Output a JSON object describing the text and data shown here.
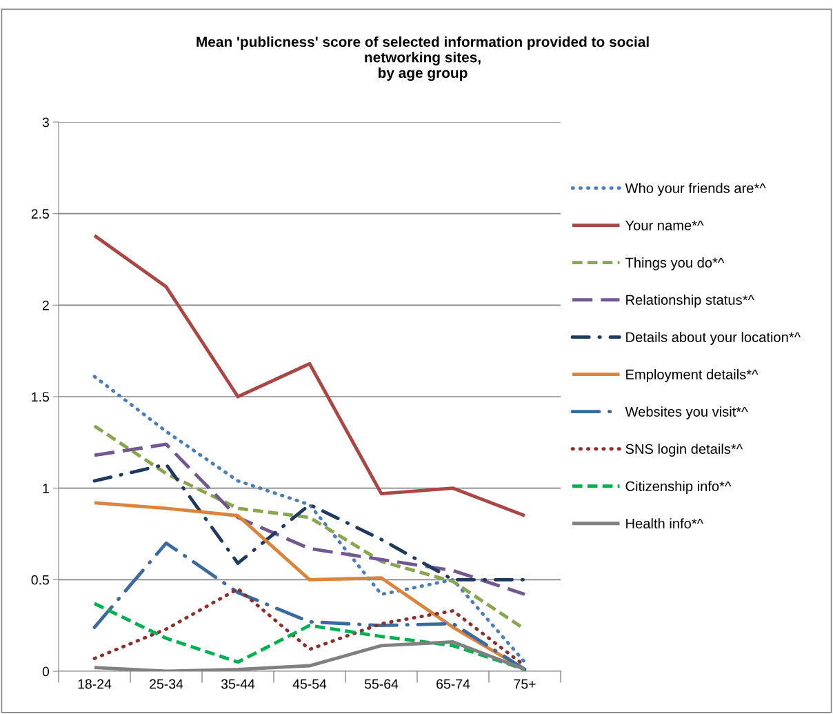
{
  "chart_data": {
    "type": "line",
    "title": "Mean 'publicness' score of selected information provided to social\nnetworking sites,\nby age group",
    "categories": [
      "18-24",
      "25-34",
      "35-44",
      "45-54",
      "55-64",
      "65-74",
      "75+"
    ],
    "series": [
      {
        "name": "Who your friends are*^",
        "color": "#4a7ebb",
        "line_style": "dotted",
        "values": [
          1.61,
          1.31,
          1.04,
          0.91,
          0.42,
          0.5,
          0.05
        ]
      },
      {
        "name": "Your name*^",
        "color": "#aa4643",
        "line_style": "solid",
        "values": [
          2.38,
          2.1,
          1.5,
          1.68,
          0.97,
          1.0,
          0.85
        ]
      },
      {
        "name": "Things you do*^",
        "color": "#89a54e",
        "line_style": "dashed",
        "values": [
          1.34,
          1.08,
          0.89,
          0.84,
          0.6,
          0.49,
          0.23
        ]
      },
      {
        "name": "Relationship status*^",
        "color": "#71588f",
        "line_style": "longdash",
        "values": [
          1.18,
          1.24,
          0.84,
          0.67,
          0.61,
          0.55,
          0.42
        ]
      },
      {
        "name": "Details about your location*^",
        "color": "#1f3a5f",
        "line_style": "dashdot",
        "values": [
          1.04,
          1.13,
          0.59,
          0.91,
          0.72,
          0.5,
          0.5
        ]
      },
      {
        "name": "Employment details*^",
        "color": "#db843d",
        "line_style": "solid",
        "values": [
          0.92,
          0.89,
          0.85,
          0.5,
          0.51,
          0.24,
          0.01
        ]
      },
      {
        "name": "Websites you visit*^",
        "color": "#3b6aa0",
        "line_style": "longdashdot",
        "values": [
          0.24,
          0.7,
          0.43,
          0.27,
          0.25,
          0.26,
          0.01
        ]
      },
      {
        "name": "SNS login details*^",
        "color": "#8b2f2f",
        "line_style": "dotted",
        "values": [
          0.07,
          0.23,
          0.45,
          0.12,
          0.26,
          0.33,
          0.03
        ]
      },
      {
        "name": "Citizenship info*^",
        "color": "#00b050",
        "line_style": "dashed",
        "values": [
          0.37,
          0.18,
          0.05,
          0.25,
          0.19,
          0.14,
          0.01
        ]
      },
      {
        "name": "Health info*^",
        "color": "#808080",
        "line_style": "solid",
        "values": [
          0.02,
          0.0,
          0.01,
          0.03,
          0.14,
          0.16,
          0.01
        ]
      }
    ],
    "ylim": [
      0,
      3
    ],
    "yticks": [
      0,
      0.5,
      1,
      1.5,
      2,
      2.5,
      3
    ],
    "grid": "y",
    "legend": "right"
  }
}
